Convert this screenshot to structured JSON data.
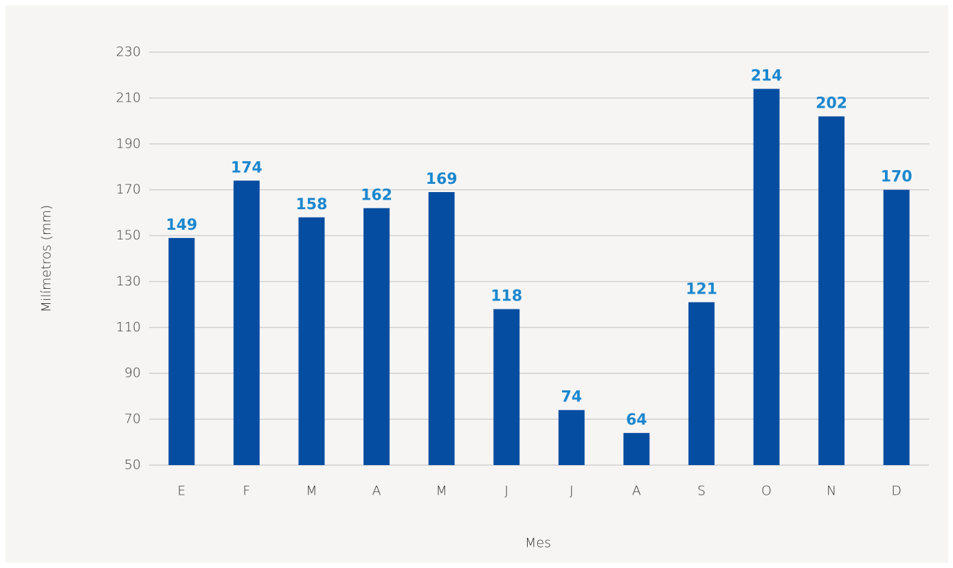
{
  "chart_data": {
    "type": "bar",
    "categories": [
      "E",
      "F",
      "M",
      "A",
      "M",
      "J",
      "J",
      "A",
      "S",
      "O",
      "N",
      "D"
    ],
    "values": [
      149,
      174,
      158,
      162,
      169,
      118,
      74,
      64,
      121,
      214,
      202,
      170
    ],
    "color": "#054da1",
    "value_label_color": "#1b87cf",
    "ylim": [
      50,
      230
    ],
    "yticks": [
      50,
      70,
      90,
      110,
      130,
      150,
      170,
      190,
      210,
      230
    ],
    "grid": true,
    "x_label": "Mes",
    "y_label": "Milímetros (mm)"
  }
}
